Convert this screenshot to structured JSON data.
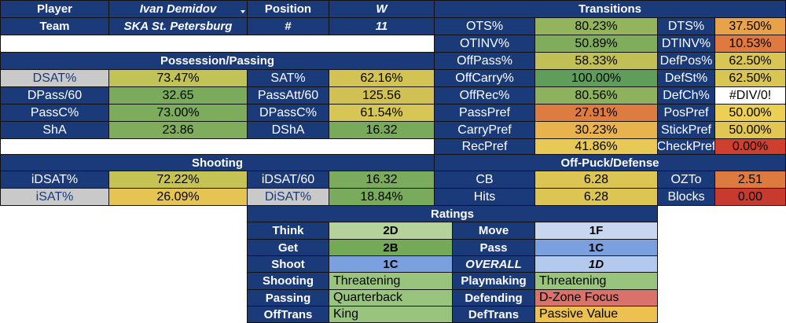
{
  "header": {
    "player_label": "Player",
    "player_name": "Ivan Demidov",
    "position_label": "Position",
    "position_value": "W",
    "team_label": "Team",
    "team_name": "SKA St. Petersburg",
    "number_label": "#",
    "number_value": "11"
  },
  "possession": {
    "title": "Possession/Passing",
    "rows": [
      {
        "l1": "DSAT%",
        "v1": "73.47%",
        "c1": "#c2c356",
        "l2": "SAT%",
        "v2": "62.16%",
        "c2": "#d2c354"
      },
      {
        "l1": "DPass/60",
        "v1": "32.65",
        "c1": "#7aab5c",
        "l2": "PassAtt/60",
        "v2": "125.56",
        "c2": "#d1c155"
      },
      {
        "l1": "PassC%",
        "v1": "73.00%",
        "c1": "#7dac5d",
        "l2": "DPassC%",
        "v2": "61.54%",
        "c2": "#d6c655"
      },
      {
        "l1": "ShA",
        "v1": "23.86",
        "c1": "#80ad5c",
        "l2": "DShA",
        "v2": "16.32",
        "c2": "#79aa5c"
      }
    ]
  },
  "shooting": {
    "title": "Shooting",
    "rows": [
      {
        "l1": "iDSAT%",
        "v1": "72.22%",
        "c1": "#c6c355",
        "l2": "iDSAT/60",
        "v2": "16.32",
        "c2": "#7bab5c"
      },
      {
        "l1": "iSAT%",
        "v1": "26.09%",
        "c1": "#e5c453",
        "l2": "DiSAT%",
        "v2": "18.84%",
        "c2": "#7aab5c"
      }
    ]
  },
  "transitions": {
    "title": "Transitions",
    "rows": [
      {
        "l1": "OTS%",
        "v1": "80.23%",
        "c1": "#93b35d",
        "l2": "DTS%",
        "v2": "37.50%",
        "c2": "#e7a24a"
      },
      {
        "l1": "OTINV%",
        "v1": "50.89%",
        "c1": "#80ad5c",
        "l2": "DTINV%",
        "v2": "10.53%",
        "c2": "#e0793f"
      },
      {
        "l1": "OffPass%",
        "v1": "58.33%",
        "c1": "#c0c056",
        "l2": "DefPos%",
        "v2": "62.50%",
        "c2": "#d9c553"
      },
      {
        "l1": "OffCarry%",
        "v1": "100.00%",
        "c1": "#5f9e5a",
        "l2": "DefSt%",
        "v2": "62.50%",
        "c2": "#d9c553"
      },
      {
        "l1": "OffRec%",
        "v1": "80.56%",
        "c1": "#8db15c",
        "l2": "DefCh%",
        "v2": "#DIV/0!",
        "c2": "#ffffff"
      },
      {
        "l1": "PassPref",
        "v1": "27.91%",
        "c1": "#dc7c40",
        "l2": "PosPref",
        "v2": "50.00%",
        "c2": "#ecd056"
      },
      {
        "l1": "CarryPref",
        "v1": "30.23%",
        "c1": "#e8b34d",
        "l2": "StickPref",
        "v2": "50.00%",
        "c2": "#e2c654"
      },
      {
        "l1": "RecPref",
        "v1": "41.86%",
        "c1": "#e8c955",
        "l2": "CheckPref",
        "v2": "0.00%",
        "c2": "#cf3f2f"
      }
    ]
  },
  "offpuck": {
    "title": "Off-Puck/Defense",
    "rows": [
      {
        "l1": "CB",
        "v1": "6.28",
        "c1": "#dcc553",
        "l2": "OZTo",
        "v2": "2.51",
        "c2": "#dc7a40"
      },
      {
        "l1": "Hits",
        "v1": "6.28",
        "c1": "#dcc553",
        "l2": "Blocks",
        "v2": "0.00",
        "c2": "#c83a2e"
      }
    ]
  },
  "ratings": {
    "title": "Ratings",
    "grades": [
      {
        "l1": "Think",
        "v1": "2D",
        "c1": "#b5d29a",
        "l2": "Move",
        "v2": "1F",
        "c2": "#c8d6f0"
      },
      {
        "l1": "Get",
        "v1": "2B",
        "c1": "#74a957",
        "l2": "Pass",
        "v2": "1C",
        "c2": "#7aa0e0"
      },
      {
        "l1": "Shoot",
        "v1": "1C",
        "c1": "#7aa0e0",
        "l2": "OVERALL",
        "v2": "1D",
        "c2": "#b3c9ee"
      }
    ],
    "styles": [
      {
        "l1": "Shooting",
        "v1": "Threatening",
        "c1": "#99c47e",
        "l2": "Playmaking",
        "v2": "Threatening",
        "c2": "#99c47e"
      },
      {
        "l1": "Passing",
        "v1": "Quarterback",
        "c1": "#99c47e",
        "l2": "Defending",
        "v2": "D-Zone Focus",
        "c2": "#d9726a"
      },
      {
        "l1": "OffTrans",
        "v1": "King",
        "c1": "#99c47e",
        "l2": "DefTrans",
        "v2": "Passive Value",
        "c2": "#ecc14f"
      }
    ]
  }
}
